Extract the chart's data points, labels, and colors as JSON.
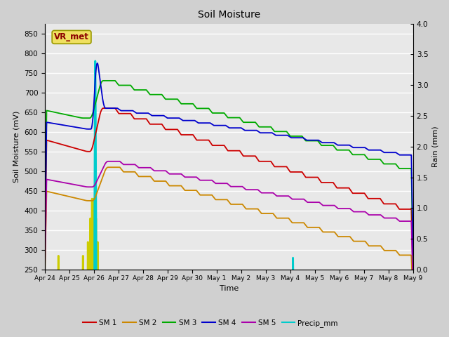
{
  "title": "Soil Moisture",
  "xlabel": "Time",
  "ylabel_left": "Soil Moisture (mV)",
  "ylabel_right": "Rain (mm)",
  "ylim_left": [
    250,
    875
  ],
  "ylim_right": [
    0.0,
    4.0
  ],
  "background_color": "#d0d0d0",
  "plot_bg_color": "#e8e8e8",
  "grid_color": "white",
  "annotation_text": "VR_met",
  "annotation_bg": "#f0e060",
  "annotation_border": "#999900",
  "annotation_text_color": "#8b0000",
  "x_tick_labels": [
    "Apr 24",
    "Apr 25",
    "Apr 26",
    "Apr 27",
    "Apr 28",
    "Apr 29",
    "Apr 30",
    "May 1",
    "May 2",
    "May 3",
    "May 4",
    "May 5",
    "May 6",
    "May 7",
    "May 8",
    "May 9"
  ],
  "sm1_color": "#cc0000",
  "sm2_color": "#cc8800",
  "sm3_color": "#00aa00",
  "sm4_color": "#0000cc",
  "sm5_color": "#aa00aa",
  "precip_color": "#00cccc",
  "tzppt_color": "#cccc00",
  "n_points": 1500
}
